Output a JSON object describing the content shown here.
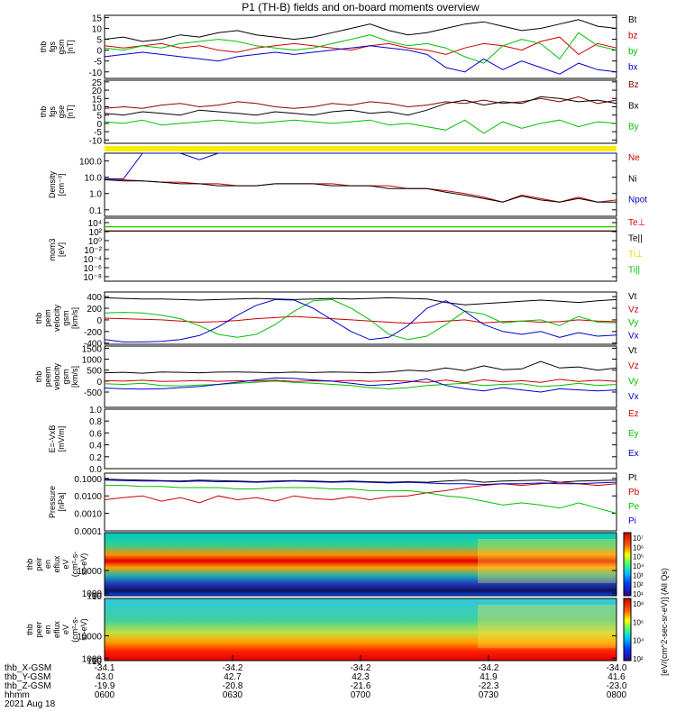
{
  "title": "P1 (TH-B) fields and on-board moments overview",
  "colorbar_label": "[eV/(cm^2-sec-sr-eV)] (All Qs)",
  "chart_data": [
    {
      "type": "line",
      "ylabel_lines": [
        "thb",
        "fgs",
        "gsm",
        "[nT]"
      ],
      "yticks": [
        "15",
        "10",
        "5",
        "0",
        "-5",
        "-10"
      ],
      "ylim": [
        -13,
        16
      ],
      "series": [
        {
          "name": "Bt",
          "color": "#000000",
          "values": [
            5,
            6,
            4,
            5,
            7,
            6,
            8,
            9,
            7,
            6,
            5,
            6,
            8,
            10,
            12,
            9,
            7,
            8,
            10,
            12,
            13,
            11,
            9,
            10,
            12,
            14,
            11,
            10
          ]
        },
        {
          "name": "bz",
          "color": "#d00000",
          "values": [
            2,
            1,
            2,
            3,
            1,
            2,
            0,
            -1,
            1,
            2,
            3,
            2,
            1,
            0,
            2,
            3,
            1,
            0,
            -2,
            1,
            3,
            2,
            0,
            4,
            6,
            -2,
            3,
            1
          ]
        },
        {
          "name": "by",
          "color": "#00c000",
          "values": [
            1,
            0,
            2,
            1,
            3,
            4,
            5,
            4,
            2,
            1,
            0,
            1,
            3,
            5,
            7,
            4,
            2,
            3,
            1,
            -3,
            -6,
            2,
            5,
            3,
            -4,
            8,
            2,
            0
          ]
        },
        {
          "name": "bx",
          "color": "#0000cc",
          "values": [
            -3,
            -2,
            -1,
            -2,
            -3,
            -4,
            -5,
            -3,
            -2,
            -1,
            -2,
            -1,
            0,
            1,
            2,
            1,
            0,
            -2,
            -8,
            -10,
            -4,
            -9,
            -5,
            -8,
            -11,
            -6,
            -9,
            -10
          ]
        }
      ]
    },
    {
      "type": "line",
      "ylabel_lines": [
        "thb",
        "fgs",
        "gse",
        "[nT]"
      ],
      "yticks": [
        "25",
        "20",
        "15",
        "10",
        "5",
        "0",
        "-5",
        "-10"
      ],
      "ylim": [
        -12,
        26
      ],
      "series": [
        {
          "name": "Bz",
          "color": "#8b0000",
          "values": [
            9,
            10,
            9,
            11,
            12,
            10,
            11,
            13,
            12,
            10,
            9,
            10,
            12,
            11,
            13,
            12,
            10,
            11,
            13,
            12,
            14,
            12,
            13,
            15,
            13,
            16,
            12,
            14
          ]
        },
        {
          "name": "Bx",
          "color": "#000000",
          "values": [
            6,
            5,
            7,
            6,
            5,
            8,
            7,
            6,
            5,
            7,
            6,
            5,
            7,
            8,
            6,
            7,
            5,
            8,
            12,
            14,
            11,
            13,
            12,
            16,
            15,
            13,
            14,
            12
          ]
        },
        {
          "name": "By",
          "color": "#00c000",
          "values": [
            1,
            0,
            2,
            -1,
            0,
            1,
            2,
            1,
            0,
            1,
            2,
            1,
            0,
            1,
            2,
            -1,
            0,
            -2,
            -4,
            2,
            -6,
            1,
            -3,
            0,
            2,
            -2,
            1,
            0
          ]
        }
      ]
    },
    {
      "type": "line",
      "yscale": "log",
      "ylabel_lines": [
        "Density",
        "[cm^-3]"
      ],
      "yticks": [
        "100.0",
        "10.0",
        "1.0",
        "0.1"
      ],
      "ylim": [
        0.04,
        300
      ],
      "series": [
        {
          "name": "Ne",
          "color": "#cc0000",
          "values": [
            8,
            7,
            6,
            5,
            5,
            4,
            4,
            3,
            3,
            4,
            4,
            4,
            4,
            3,
            3,
            3,
            2,
            2,
            1.5,
            1,
            0.6,
            0.3,
            0.8,
            0.5,
            0.3,
            0.6,
            0.3,
            0.4
          ]
        },
        {
          "name": "Ni",
          "color": "#000000",
          "values": [
            7,
            6,
            6,
            5,
            4,
            4,
            3,
            3,
            3,
            4,
            4,
            4,
            3,
            3,
            3,
            2,
            2,
            2,
            1.2,
            0.8,
            0.5,
            0.3,
            0.7,
            0.4,
            0.3,
            0.5,
            0.3,
            0.3
          ]
        },
        {
          "name": "Npot",
          "color": "#0000cc",
          "values": [
            8,
            8,
            300,
            300,
            300,
            120,
            300,
            300,
            300,
            300,
            300,
            300,
            300,
            300,
            300,
            300,
            300,
            300,
            300,
            300,
            300,
            300,
            300,
            300,
            300,
            300,
            300,
            300
          ]
        }
      ]
    },
    {
      "type": "line",
      "yscale": "log",
      "ylabel_lines": [
        "mom3",
        "[eV]"
      ],
      "yticks": [
        "10^4",
        "10^2",
        "10^0",
        "10^-2",
        "10^-4",
        "10^-6",
        "10^-8"
      ],
      "ylim": [
        1e-09,
        100000.0
      ],
      "series": [
        {
          "name": "Te⊥",
          "color": "#cc0000",
          "values": [
            150,
            150,
            150,
            150,
            150,
            150,
            150,
            150,
            150,
            150,
            150,
            150,
            150,
            150,
            150,
            150,
            150,
            150,
            150,
            150,
            150,
            150,
            150,
            150,
            150,
            150,
            150,
            150
          ]
        },
        {
          "name": "Te||",
          "color": "#000000",
          "values": [
            130,
            130,
            130,
            130,
            130,
            130,
            130,
            130,
            130,
            130,
            130,
            130,
            130,
            130,
            130,
            130,
            130,
            130,
            130,
            130,
            130,
            130,
            130,
            130,
            130,
            130,
            130,
            130
          ]
        },
        {
          "name": "Ti⊥",
          "color": "#dddd00",
          "values": [
            1000,
            1000,
            1000,
            1000,
            1000,
            1000,
            1000,
            1000,
            1000,
            1000,
            1000,
            1000,
            1000,
            1000,
            1000,
            1000,
            1000,
            1000,
            1000,
            1000,
            1000,
            1000,
            1000,
            1000,
            1000,
            1000,
            1000,
            1000
          ]
        },
        {
          "name": "Ti||",
          "color": "#00c000",
          "values": [
            1200,
            1200,
            1200,
            1200,
            1200,
            1200,
            1200,
            1200,
            1200,
            1200,
            1200,
            1200,
            1200,
            1200,
            1200,
            1200,
            1200,
            1200,
            1200,
            1200,
            1200,
            1200,
            1200,
            1200,
            1200,
            1200,
            1200,
            1200
          ]
        }
      ]
    },
    {
      "type": "line",
      "ylabel_lines": [
        "thb",
        "peim",
        "velocity",
        "gsm",
        "[km/s]"
      ],
      "yticks": [
        "400",
        "200",
        "0",
        "-200",
        "-400"
      ],
      "ylim": [
        -420,
        480
      ],
      "series": [
        {
          "name": "Vt",
          "color": "#000000",
          "values": [
            380,
            370,
            360,
            360,
            350,
            340,
            350,
            360,
            370,
            360,
            350,
            360,
            370,
            360,
            370,
            380,
            370,
            360,
            300,
            260,
            280,
            300,
            320,
            340,
            320,
            300,
            330,
            350
          ]
        },
        {
          "name": "Vz",
          "color": "#cc0000",
          "values": [
            30,
            20,
            10,
            0,
            -20,
            -40,
            -30,
            -10,
            20,
            40,
            60,
            40,
            20,
            0,
            -20,
            -40,
            -60,
            -40,
            -20,
            0,
            -50,
            -30,
            -20,
            -40,
            -30,
            0,
            -20,
            -30
          ]
        },
        {
          "name": "Vy",
          "color": "#00c000",
          "values": [
            120,
            130,
            120,
            80,
            20,
            -100,
            -250,
            -300,
            -250,
            -80,
            150,
            330,
            350,
            200,
            0,
            -250,
            -340,
            -280,
            -80,
            150,
            100,
            -50,
            -20,
            0,
            -100,
            60,
            -40,
            -50
          ]
        },
        {
          "name": "Vx",
          "color": "#0000cc",
          "values": [
            -340,
            -380,
            -380,
            -370,
            -340,
            -270,
            -120,
            80,
            250,
            350,
            340,
            200,
            0,
            -200,
            -340,
            -300,
            -100,
            200,
            330,
            150,
            -80,
            -200,
            -250,
            -200,
            -300,
            -220,
            -280,
            -260
          ]
        }
      ]
    },
    {
      "type": "line",
      "ylabel_lines": [
        "thb",
        "peem",
        "velocity",
        "gsm",
        "[km/s]"
      ],
      "yticks": [
        "1500",
        "1000",
        "500",
        "0",
        "-500"
      ],
      "ylim": [
        -1200,
        1600
      ],
      "series": [
        {
          "name": "Vt",
          "color": "#000000",
          "values": [
            380,
            400,
            360,
            420,
            400,
            380,
            410,
            420,
            400,
            380,
            410,
            390,
            420,
            400,
            380,
            420,
            500,
            450,
            600,
            480,
            700,
            520,
            560,
            900,
            600,
            650,
            500,
            600
          ]
        },
        {
          "name": "Vz",
          "color": "#cc0000",
          "values": [
            20,
            0,
            40,
            -20,
            0,
            30,
            -10,
            20,
            0,
            40,
            -20,
            10,
            0,
            30,
            -10,
            20,
            0,
            -60,
            50,
            -80,
            60,
            -40,
            20,
            -60,
            80,
            -20,
            40,
            -10
          ]
        },
        {
          "name": "Vy",
          "color": "#00c000",
          "values": [
            -120,
            -150,
            -100,
            -200,
            -220,
            -180,
            -150,
            -100,
            -50,
            0,
            -60,
            -100,
            -150,
            -200,
            -300,
            -350,
            -300,
            -200,
            -150,
            -100,
            -200,
            -150,
            -120,
            -250,
            -200,
            -100,
            -200,
            -150
          ]
        },
        {
          "name": "Vx",
          "color": "#0000cc",
          "values": [
            -320,
            -350,
            -370,
            -350,
            -300,
            -250,
            -150,
            -50,
            50,
            150,
            120,
            50,
            0,
            -100,
            -200,
            -150,
            -50,
            100,
            -200,
            -350,
            -450,
            -300,
            -400,
            -500,
            -350,
            -400,
            -450,
            -400
          ]
        }
      ]
    },
    {
      "type": "line",
      "ylabel_lines": [
        "E=-VxB",
        "[mV/m]"
      ],
      "yticks": [
        "1.0",
        "0.8",
        "0.6",
        "0.4",
        "0.2",
        "0.0"
      ],
      "ylim": [
        0,
        1
      ],
      "series": [
        {
          "name": "Ez",
          "color": "#cc0000",
          "values": []
        },
        {
          "name": "Ey",
          "color": "#00c000",
          "values": []
        },
        {
          "name": "Ex",
          "color": "#0000cc",
          "values": []
        }
      ]
    },
    {
      "type": "line",
      "yscale": "log",
      "ylabel_lines": [
        "Pressure",
        "[nPa]"
      ],
      "yticks": [
        "0.1000",
        "0.0100",
        "0.0010",
        "0.0001"
      ],
      "ylim": [
        0.0001,
        0.2
      ],
      "series": [
        {
          "name": "Pt",
          "color": "#000000",
          "values": [
            0.09,
            0.085,
            0.08,
            0.075,
            0.07,
            0.08,
            0.075,
            0.07,
            0.065,
            0.07,
            0.075,
            0.07,
            0.065,
            0.07,
            0.065,
            0.06,
            0.065,
            0.06,
            0.07,
            0.08,
            0.06,
            0.07,
            0.075,
            0.08,
            0.06,
            0.07,
            0.075,
            0.08
          ]
        },
        {
          "name": "Pb",
          "color": "#cc0000",
          "values": [
            0.006,
            0.008,
            0.01,
            0.005,
            0.008,
            0.004,
            0.01,
            0.006,
            0.008,
            0.005,
            0.01,
            0.007,
            0.006,
            0.009,
            0.006,
            0.009,
            0.01,
            0.015,
            0.02,
            0.03,
            0.04,
            0.05,
            0.04,
            0.05,
            0.06,
            0.05,
            0.04,
            0.05
          ]
        },
        {
          "name": "Pe",
          "color": "#00c000",
          "values": [
            0.04,
            0.04,
            0.035,
            0.035,
            0.03,
            0.03,
            0.03,
            0.025,
            0.025,
            0.03,
            0.03,
            0.03,
            0.025,
            0.025,
            0.02,
            0.02,
            0.02,
            0.015,
            0.01,
            0.008,
            0.005,
            0.003,
            0.004,
            0.003,
            0.002,
            0.004,
            0.002,
            0.001
          ]
        },
        {
          "name": "Pi",
          "color": "#0000cc",
          "values": [
            0.08,
            0.075,
            0.07,
            0.07,
            0.065,
            0.07,
            0.065,
            0.065,
            0.06,
            0.065,
            0.07,
            0.065,
            0.06,
            0.065,
            0.06,
            0.055,
            0.06,
            0.055,
            0.05,
            0.05,
            0.045,
            0.05,
            0.05,
            0.055,
            0.05,
            0.05,
            0.055,
            0.06
          ]
        }
      ]
    },
    {
      "type": "heatmap",
      "ylabel_lines": [
        "thb",
        "peir",
        "en",
        "eflux",
        "eV",
        "(cm^2-s-",
        "sr-eV)"
      ],
      "yticks": [
        "10000",
        "1000",
        "100",
        "10"
      ],
      "ylim": [
        5,
        25000
      ],
      "colorbar_ticks": [
        "10^7",
        "10^6",
        "10^5",
        "10^4",
        "10^3",
        "10^2",
        "10^1"
      ]
    },
    {
      "type": "heatmap",
      "ylabel_lines": [
        "thb",
        "peer",
        "en",
        "eflux",
        "eV",
        "(cm^2-s-",
        "sr-eV)"
      ],
      "yticks": [
        "10000",
        "1000",
        "100",
        "10"
      ],
      "ylim": [
        5,
        25000
      ],
      "colorbar_ticks": [
        "10^8",
        "10^6",
        "10^4",
        "10^2"
      ]
    }
  ],
  "xaxis": {
    "row_labels": [
      "thb_X-GSM",
      "thb_Y-GSM",
      "thb_Z-GSM",
      "hhmm",
      "2021 Aug 18"
    ],
    "ticks": [
      {
        "x": "-34.1",
        "y": "43.0",
        "z": "-19.9",
        "hhmm": "0600"
      },
      {
        "x": "-34.2",
        "y": "42.7",
        "z": "-20.8",
        "hhmm": "0630"
      },
      {
        "x": "-34.2",
        "y": "42.3",
        "z": "-21.6",
        "hhmm": "0700"
      },
      {
        "x": "-34.2",
        "y": "41.9",
        "z": "-22.3",
        "hhmm": "0730"
      },
      {
        "x": "-34.0",
        "y": "41.6",
        "z": "-23.0",
        "hhmm": "0800"
      }
    ]
  }
}
